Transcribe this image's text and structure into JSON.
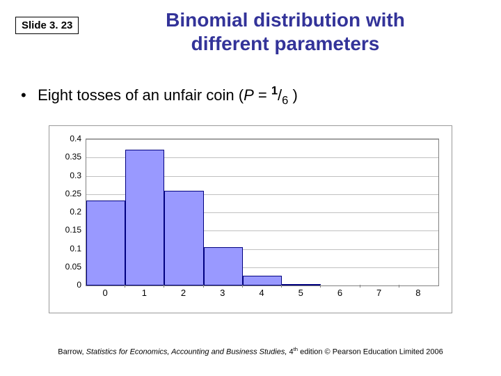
{
  "slide_label": "Slide 3. 23",
  "title_line1": "Binomial distribution with",
  "title_line2": "different parameters",
  "title_color": "#333399",
  "bullet": {
    "pre": "Eight tosses of an unfair coin (",
    "p_var": "P",
    "eq": " = ",
    "num": "1",
    "slash": "/",
    "den": "6",
    "post": " )"
  },
  "chart": {
    "type": "bar",
    "categories": [
      "0",
      "1",
      "2",
      "3",
      "4",
      "5",
      "6",
      "7",
      "8"
    ],
    "values": [
      0.233,
      0.372,
      0.26,
      0.104,
      0.026,
      0.004,
      0.0004,
      3e-05,
      1e-06
    ],
    "bar_color": "#9999ff",
    "bar_border_color": "#000080",
    "ylim_max": 0.4,
    "ytick_step": 0.05,
    "ytick_labels": [
      "0",
      "0.05",
      "0.1",
      "0.15",
      "0.2",
      "0.25",
      "0.3",
      "0.35",
      "0.4"
    ],
    "grid_color": "#c0c0c0",
    "axis_color": "#808080",
    "background_color": "#ffffff",
    "bar_width_ratio": 1.0,
    "font_size_ticks": 12
  },
  "footer": {
    "pre": "Barrow, ",
    "ital": "Statistics for Economics, Accounting and Business Studies,",
    "post1": " 4",
    "th": "th",
    "post2": " edition © Pearson Education Limited 2006"
  }
}
